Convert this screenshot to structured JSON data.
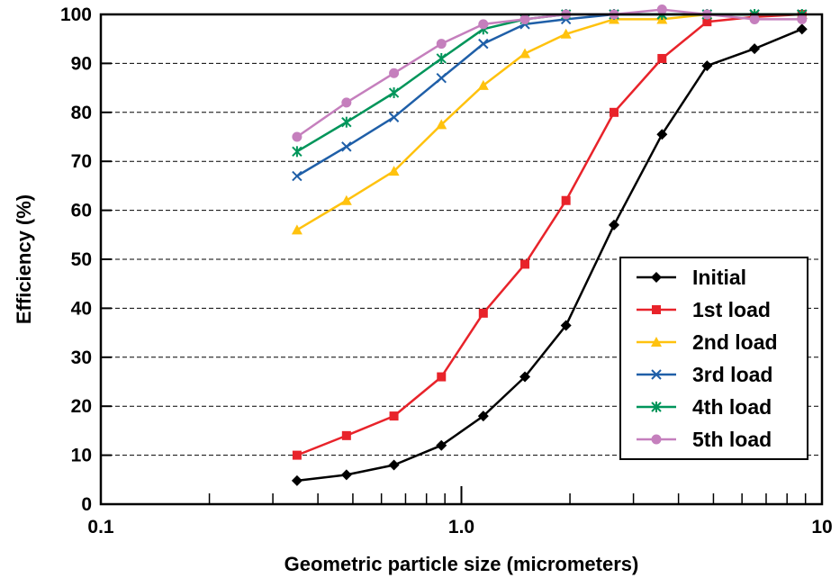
{
  "chart_data": {
    "type": "line",
    "title": "",
    "xlabel": "Geometric particle size (micrometers)",
    "ylabel": "Efficiency (%)",
    "x_scale": "log",
    "xlim": [
      0.1,
      10
    ],
    "ylim": [
      0,
      100
    ],
    "x_tick_labels": [
      "0.1",
      "1.0",
      "10"
    ],
    "x_tick_values": [
      0.1,
      1.0,
      10
    ],
    "y_ticks": [
      0,
      10,
      20,
      30,
      40,
      50,
      60,
      70,
      80,
      90,
      100
    ],
    "grid": "horizontal dashed",
    "legend_position": "lower-right",
    "x": [
      0.35,
      0.48,
      0.65,
      0.88,
      1.15,
      1.5,
      1.95,
      2.65,
      3.6,
      4.8,
      6.5,
      8.8
    ],
    "series": [
      {
        "name": "Initial",
        "color": "#000000",
        "marker": "diamond",
        "values": [
          4.8,
          6,
          8,
          12,
          18,
          26,
          36.5,
          57,
          75.5,
          89.5,
          93,
          97
        ]
      },
      {
        "name": "1st load",
        "color": "#e8232a",
        "marker": "square",
        "values": [
          10,
          14,
          18,
          26,
          39,
          49,
          62,
          80,
          91,
          98.5,
          99.5,
          100
        ]
      },
      {
        "name": "2nd load",
        "color": "#ffc20e",
        "marker": "triangle",
        "values": [
          56,
          62,
          68,
          77.5,
          85.5,
          92,
          96,
          99,
          99,
          100,
          100,
          100
        ]
      },
      {
        "name": "3rd load",
        "color": "#1f5fa8",
        "marker": "x",
        "values": [
          67,
          73,
          79,
          87,
          94,
          98,
          99,
          100,
          100,
          100,
          100,
          100
        ]
      },
      {
        "name": "4th load",
        "color": "#00955a",
        "marker": "star",
        "values": [
          72,
          78,
          84,
          91,
          97,
          99,
          100,
          100,
          100,
          100,
          100,
          100
        ]
      },
      {
        "name": "5th load",
        "color": "#c57fbd",
        "marker": "circle",
        "values": [
          75,
          82,
          88,
          94,
          98,
          99,
          100,
          100,
          101,
          100,
          99,
          99
        ]
      }
    ]
  }
}
